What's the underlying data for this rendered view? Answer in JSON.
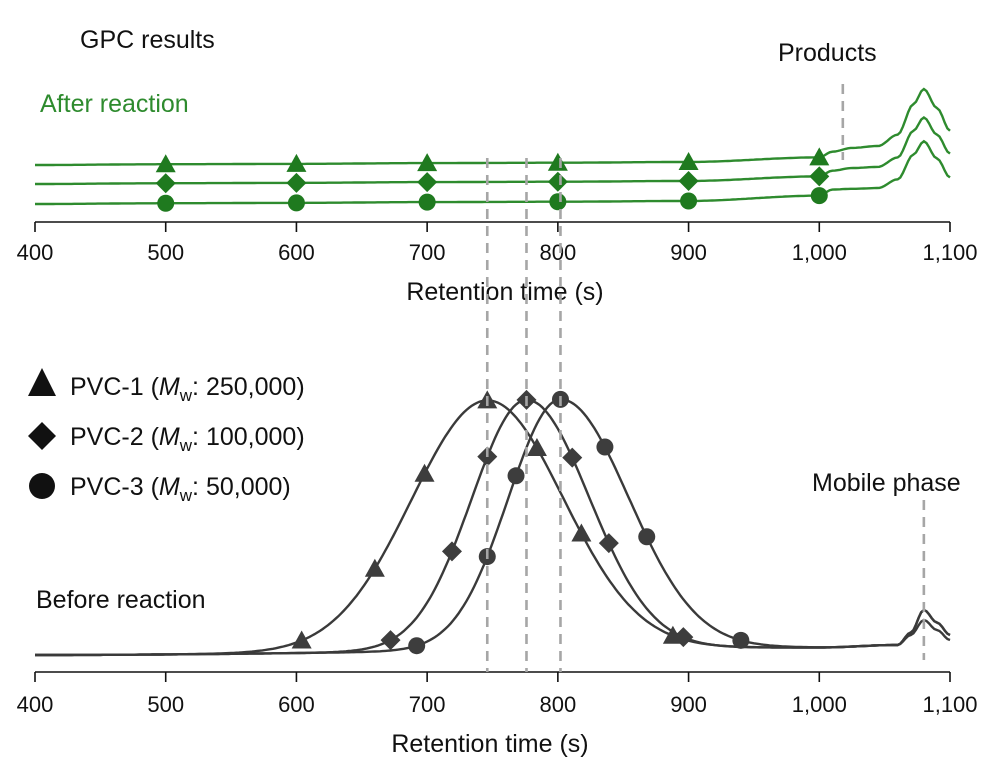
{
  "colors": {
    "after": "#2e8b2e",
    "after_dark": "#1f7a1f",
    "before": "#3a3a3a",
    "marker": "#3d3d3d",
    "dashed": "#a6a6a6"
  },
  "chart_data": [
    {
      "type": "line",
      "title": "GPC results",
      "panel_label": "After reaction",
      "xlabel": "Retention time (s)",
      "xlim": [
        400,
        1100
      ],
      "xticks": [
        400,
        500,
        600,
        700,
        800,
        900,
        1000,
        1100
      ],
      "xticklabels": [
        "400",
        "500",
        "600",
        "700",
        "800",
        "900",
        "1,000",
        "1,100"
      ],
      "annotation": "Products",
      "annotation_x": 1018,
      "series": [
        {
          "marker": "triangle",
          "x": [
            400,
            500,
            600,
            700,
            800,
            900,
            1000,
            1010,
            1025,
            1045,
            1060,
            1072,
            1080,
            1090,
            1100
          ],
          "y": [
            0.0,
            0.02,
            0.03,
            0.05,
            0.06,
            0.08,
            0.2,
            0.35,
            0.45,
            0.5,
            0.8,
            1.6,
            2.0,
            1.5,
            0.9
          ],
          "markers_x": [
            500,
            600,
            700,
            800,
            900,
            1000
          ]
        },
        {
          "marker": "diamond",
          "x": [
            400,
            500,
            600,
            700,
            800,
            900,
            1000,
            1010,
            1025,
            1045,
            1060,
            1072,
            1080,
            1090,
            1100
          ],
          "y": [
            0.0,
            0.02,
            0.03,
            0.05,
            0.06,
            0.08,
            0.2,
            0.35,
            0.42,
            0.45,
            0.7,
            1.4,
            1.75,
            1.3,
            0.8
          ],
          "markers_x": [
            500,
            600,
            700,
            800,
            900,
            1000
          ]
        },
        {
          "marker": "circle",
          "x": [
            400,
            500,
            600,
            700,
            800,
            900,
            1000,
            1010,
            1025,
            1045,
            1060,
            1072,
            1080,
            1090,
            1100
          ],
          "y": [
            0.0,
            0.02,
            0.03,
            0.05,
            0.06,
            0.08,
            0.22,
            0.38,
            0.4,
            0.42,
            0.65,
            1.3,
            1.65,
            1.2,
            0.7
          ],
          "markers_x": [
            500,
            600,
            700,
            800,
            900,
            1000
          ]
        }
      ]
    },
    {
      "type": "line",
      "panel_label": "Before reaction",
      "xlabel": "Retention time (s)",
      "xlim": [
        400,
        1100
      ],
      "xticks": [
        400,
        500,
        600,
        700,
        800,
        900,
        1000,
        1100
      ],
      "xticklabels": [
        "400",
        "500",
        "600",
        "700",
        "800",
        "900",
        "1,000",
        "1,100"
      ],
      "annotation": "Mobile phase",
      "annotation_x": 1080,
      "peak_lines_x": [
        746,
        776,
        802
      ],
      "legend": [
        {
          "marker": "triangle",
          "name": "PVC-1",
          "mw": "250,000"
        },
        {
          "marker": "diamond",
          "name": "PVC-2",
          "mw": "100,000"
        },
        {
          "marker": "circle",
          "name": "PVC-3",
          "mw": "50,000"
        }
      ],
      "series": [
        {
          "name": "PVC-1",
          "marker": "triangle",
          "peak_x": 746,
          "peak_y": 1.0,
          "sigma_left": 58,
          "sigma_right": 58,
          "markers_x": [
            604,
            660,
            698,
            746,
            784,
            818,
            888
          ],
          "tail": [
            [
              400,
              0.0
            ],
            [
              1000,
              0.03
            ],
            [
              1060,
              0.04
            ],
            [
              1070,
              0.09
            ],
            [
              1080,
              0.18
            ],
            [
              1090,
              0.13
            ],
            [
              1100,
              0.08
            ]
          ]
        },
        {
          "name": "PVC-2",
          "marker": "diamond",
          "peak_x": 776,
          "peak_y": 1.0,
          "sigma_left": 42,
          "sigma_right": 48,
          "markers_x": [
            672,
            719,
            746,
            776,
            811,
            839,
            896
          ],
          "tail": [
            [
              400,
              0.0
            ],
            [
              1000,
              0.03
            ],
            [
              1060,
              0.04
            ],
            [
              1070,
              0.09
            ],
            [
              1080,
              0.18
            ],
            [
              1090,
              0.13
            ],
            [
              1100,
              0.08
            ]
          ]
        },
        {
          "name": "PVC-3",
          "marker": "circle",
          "peak_x": 802,
          "peak_y": 1.0,
          "sigma_left": 40,
          "sigma_right": 52,
          "markers_x": [
            692,
            746,
            768,
            802,
            836,
            868,
            940
          ],
          "tail": [
            [
              400,
              0.0
            ],
            [
              1000,
              0.03
            ],
            [
              1060,
              0.04
            ],
            [
              1070,
              0.08
            ],
            [
              1080,
              0.14
            ],
            [
              1090,
              0.1
            ],
            [
              1100,
              0.06
            ]
          ]
        }
      ]
    }
  ]
}
